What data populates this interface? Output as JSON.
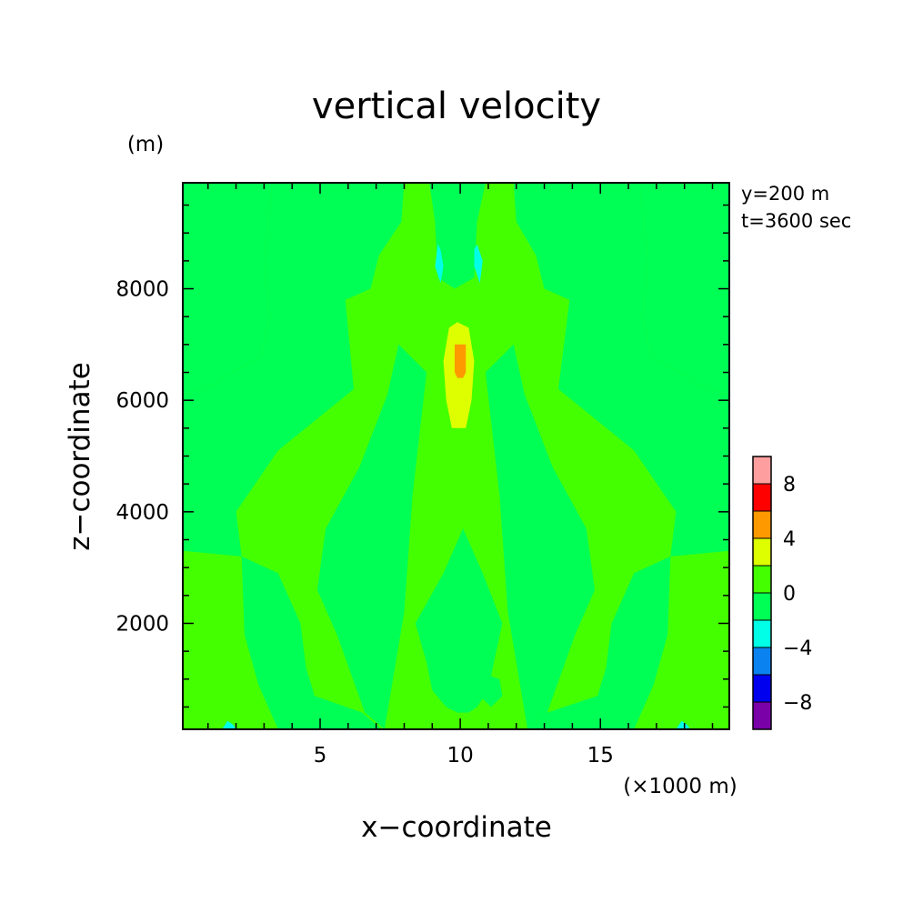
{
  "chart_data": {
    "type": "heatmap",
    "title": "vertical velocity",
    "xlabel": "x−coordinate",
    "ylabel": "z−coordinate",
    "x_unit": "(×1000 m)",
    "y_unit": "(m)",
    "info_lines": [
      "y=200 m",
      "t=3600 sec"
    ],
    "xlim": [
      0.1,
      19.6
    ],
    "ylim": [
      100,
      9900
    ],
    "x_ticks": [
      5,
      10,
      15
    ],
    "y_ticks": [
      2000,
      4000,
      6000,
      8000
    ],
    "background_level": "0 to 2",
    "levels": [
      {
        "lower": -10,
        "upper": -8,
        "color": "#7a00a8"
      },
      {
        "lower": -8,
        "upper": -6,
        "color": "#0000ee"
      },
      {
        "lower": -6,
        "upper": -4,
        "color": "#0a82f0"
      },
      {
        "lower": -4,
        "upper": -2,
        "color": "#00ffe6"
      },
      {
        "lower": -2,
        "upper": 0,
        "color": "#00ff55"
      },
      {
        "lower": 0,
        "upper": 2,
        "color": "#44ff00"
      },
      {
        "lower": 2,
        "upper": 4,
        "color": "#ddff00"
      },
      {
        "lower": 4,
        "upper": 6,
        "color": "#ff9900"
      },
      {
        "lower": 6,
        "upper": 8,
        "color": "#ff0000"
      },
      {
        "lower": 8,
        "upper": 10,
        "color": "#ff9e9e"
      }
    ],
    "colorbar_labels": [
      "8",
      "4",
      "0",
      "−4",
      "−8"
    ],
    "regions": [
      {
        "name": "left-edge-downdraft",
        "level": "-2 to 0",
        "points": [
          [
            0.1,
            9900
          ],
          [
            3.3,
            9900
          ],
          [
            3.0,
            8500
          ],
          [
            3.2,
            7500
          ],
          [
            2.9,
            6800
          ],
          [
            0.9,
            6200
          ],
          [
            0.1,
            6100
          ]
        ]
      },
      {
        "name": "right-edge-downdraft",
        "level": "-2 to 0",
        "points": [
          [
            19.6,
            9900
          ],
          [
            16.4,
            9900
          ],
          [
            16.7,
            8500
          ],
          [
            16.5,
            7500
          ],
          [
            16.8,
            6800
          ],
          [
            18.8,
            6200
          ],
          [
            19.6,
            6100
          ]
        ]
      },
      {
        "name": "left-upper-downdraft",
        "level": "-2 to 0",
        "points": [
          [
            3.3,
            9900
          ],
          [
            8.0,
            9900
          ],
          [
            7.9,
            9200
          ],
          [
            7.1,
            8600
          ],
          [
            6.8,
            8000
          ],
          [
            5.9,
            7800
          ],
          [
            6.2,
            6200
          ],
          [
            3.5,
            5100
          ],
          [
            2.0,
            4000
          ],
          [
            2.2,
            3200
          ],
          [
            0.1,
            3300
          ],
          [
            0.1,
            6100
          ],
          [
            0.9,
            6200
          ],
          [
            2.9,
            6800
          ],
          [
            3.2,
            7500
          ],
          [
            3.0,
            8500
          ]
        ]
      },
      {
        "name": "right-upper-downdraft",
        "level": "-2 to 0",
        "points": [
          [
            16.4,
            9900
          ],
          [
            11.9,
            9900
          ],
          [
            12.0,
            9200
          ],
          [
            12.7,
            8600
          ],
          [
            13.0,
            8000
          ],
          [
            13.9,
            7800
          ],
          [
            13.5,
            6200
          ],
          [
            16.2,
            5100
          ],
          [
            17.7,
            4000
          ],
          [
            17.5,
            3200
          ],
          [
            19.6,
            3300
          ],
          [
            19.6,
            6100
          ],
          [
            18.8,
            6200
          ],
          [
            16.8,
            6800
          ],
          [
            16.5,
            7500
          ],
          [
            16.7,
            8500
          ]
        ]
      },
      {
        "name": "left-lower-downdraft",
        "level": "-2 to 0",
        "points": [
          [
            2.2,
            3200
          ],
          [
            3.5,
            2900
          ],
          [
            4.3,
            2000
          ],
          [
            4.5,
            1200
          ],
          [
            4.8,
            700
          ],
          [
            6.5,
            400
          ],
          [
            7.2,
            100
          ],
          [
            3.5,
            100
          ],
          [
            2.8,
            900
          ],
          [
            2.3,
            1800
          ]
        ]
      },
      {
        "name": "right-lower-downdraft",
        "level": "-2 to 0",
        "points": [
          [
            17.5,
            3200
          ],
          [
            16.2,
            2900
          ],
          [
            15.4,
            2000
          ],
          [
            15.2,
            1200
          ],
          [
            14.9,
            700
          ],
          [
            13.1,
            400
          ],
          [
            12.4,
            100
          ],
          [
            16.2,
            100
          ],
          [
            16.9,
            900
          ],
          [
            17.4,
            1800
          ]
        ]
      },
      {
        "name": "left-arm-downdraft",
        "level": "-2 to 0",
        "points": [
          [
            7.8,
            7000
          ],
          [
            7.4,
            6100
          ],
          [
            6.4,
            4800
          ],
          [
            5.2,
            3700
          ],
          [
            4.9,
            2600
          ],
          [
            5.6,
            1800
          ],
          [
            6.1,
            1100
          ],
          [
            6.6,
            400
          ],
          [
            7.3,
            100
          ],
          [
            8.0,
            2200
          ],
          [
            8.3,
            4300
          ],
          [
            8.8,
            6500
          ]
        ]
      },
      {
        "name": "right-arm-downdraft",
        "level": "-2 to 0",
        "points": [
          [
            11.9,
            7000
          ],
          [
            12.3,
            6100
          ],
          [
            13.3,
            4800
          ],
          [
            14.5,
            3700
          ],
          [
            14.8,
            2600
          ],
          [
            14.1,
            1800
          ],
          [
            13.6,
            1100
          ],
          [
            13.1,
            400
          ],
          [
            12.4,
            100
          ],
          [
            11.7,
            2200
          ],
          [
            11.4,
            4300
          ],
          [
            10.9,
            6500
          ]
        ]
      },
      {
        "name": "center-top-downdraft",
        "level": "-2 to 0",
        "points": [
          [
            8.9,
            9900
          ],
          [
            10.9,
            9900
          ],
          [
            10.6,
            9200
          ],
          [
            10.5,
            8200
          ],
          [
            9.8,
            8000
          ],
          [
            9.2,
            8200
          ],
          [
            9.1,
            9200
          ]
        ]
      },
      {
        "name": "center-lower-downdraft",
        "level": "-2 to 0",
        "points": [
          [
            9.4,
            2900
          ],
          [
            10.1,
            3700
          ],
          [
            10.8,
            2900
          ],
          [
            11.5,
            2000
          ],
          [
            11.2,
            1300
          ],
          [
            11.0,
            800
          ],
          [
            10.6,
            500
          ],
          [
            10.3,
            400
          ],
          [
            9.9,
            400
          ],
          [
            9.5,
            500
          ],
          [
            9.0,
            800
          ],
          [
            8.8,
            1300
          ],
          [
            8.4,
            2000
          ]
        ]
      },
      {
        "name": "right-lower-small-downdraft",
        "level": "-2 to 0",
        "points": [
          [
            10.8,
            1100
          ],
          [
            11.4,
            1000
          ],
          [
            11.5,
            700
          ],
          [
            11.1,
            500
          ],
          [
            10.7,
            700
          ]
        ]
      },
      {
        "name": "updraft-column",
        "level": "2 to 4",
        "points": [
          [
            9.9,
            7400
          ],
          [
            10.3,
            7300
          ],
          [
            10.5,
            6700
          ],
          [
            10.4,
            6000
          ],
          [
            10.2,
            5500
          ],
          [
            9.7,
            5500
          ],
          [
            9.5,
            6000
          ],
          [
            9.4,
            6700
          ],
          [
            9.6,
            7300
          ]
        ]
      },
      {
        "name": "updraft-core",
        "level": "4 to 6",
        "points": [
          [
            9.8,
            7000
          ],
          [
            10.2,
            7000
          ],
          [
            10.2,
            6500
          ],
          [
            10.1,
            6400
          ],
          [
            9.9,
            6400
          ],
          [
            9.8,
            6500
          ]
        ]
      },
      {
        "name": "downdraft-cell-left",
        "level": "-4 to -2",
        "points": [
          [
            9.2,
            8800
          ],
          [
            9.3,
            8700
          ],
          [
            9.4,
            8400
          ],
          [
            9.3,
            8100
          ],
          [
            9.1,
            8400
          ]
        ]
      },
      {
        "name": "downdraft-cell-right",
        "level": "-4 to -2",
        "points": [
          [
            10.6,
            8800
          ],
          [
            10.8,
            8500
          ],
          [
            10.7,
            8100
          ],
          [
            10.5,
            8400
          ],
          [
            10.5,
            8700
          ]
        ]
      },
      {
        "name": "surface-cell-left",
        "level": "-4 to -2",
        "points": [
          [
            1.5,
            100
          ],
          [
            1.7,
            250
          ],
          [
            1.9,
            180
          ],
          [
            2.0,
            100
          ]
        ]
      },
      {
        "name": "surface-cell-right",
        "level": "-4 to -2",
        "points": [
          [
            17.7,
            100
          ],
          [
            17.9,
            250
          ],
          [
            18.1,
            180
          ],
          [
            18.2,
            100
          ]
        ]
      }
    ]
  }
}
